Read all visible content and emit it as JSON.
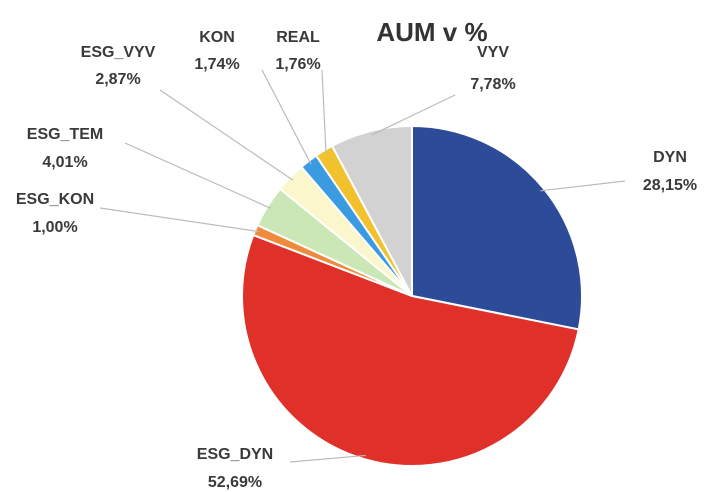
{
  "chart_data": {
    "type": "pie",
    "title": "AUM v %",
    "categories": [
      "DYN",
      "ESG_DYN",
      "ESG_KON",
      "ESG_TEM",
      "ESG_VYV",
      "KON",
      "REAL",
      "VYV"
    ],
    "values": [
      28.15,
      52.69,
      1.0,
      4.01,
      2.87,
      1.74,
      1.76,
      7.78
    ],
    "value_labels": [
      "28,15%",
      "52,69%",
      "1,00%",
      "4,01%",
      "2,87%",
      "1,74%",
      "1,76%",
      "7,78%"
    ],
    "colors": [
      "#2e4b9a",
      "#e0302a",
      "#f08a3c",
      "#cbe7b6",
      "#fbf6cb",
      "#3a9be0",
      "#f2c12e",
      "#d2d2d2"
    ]
  }
}
